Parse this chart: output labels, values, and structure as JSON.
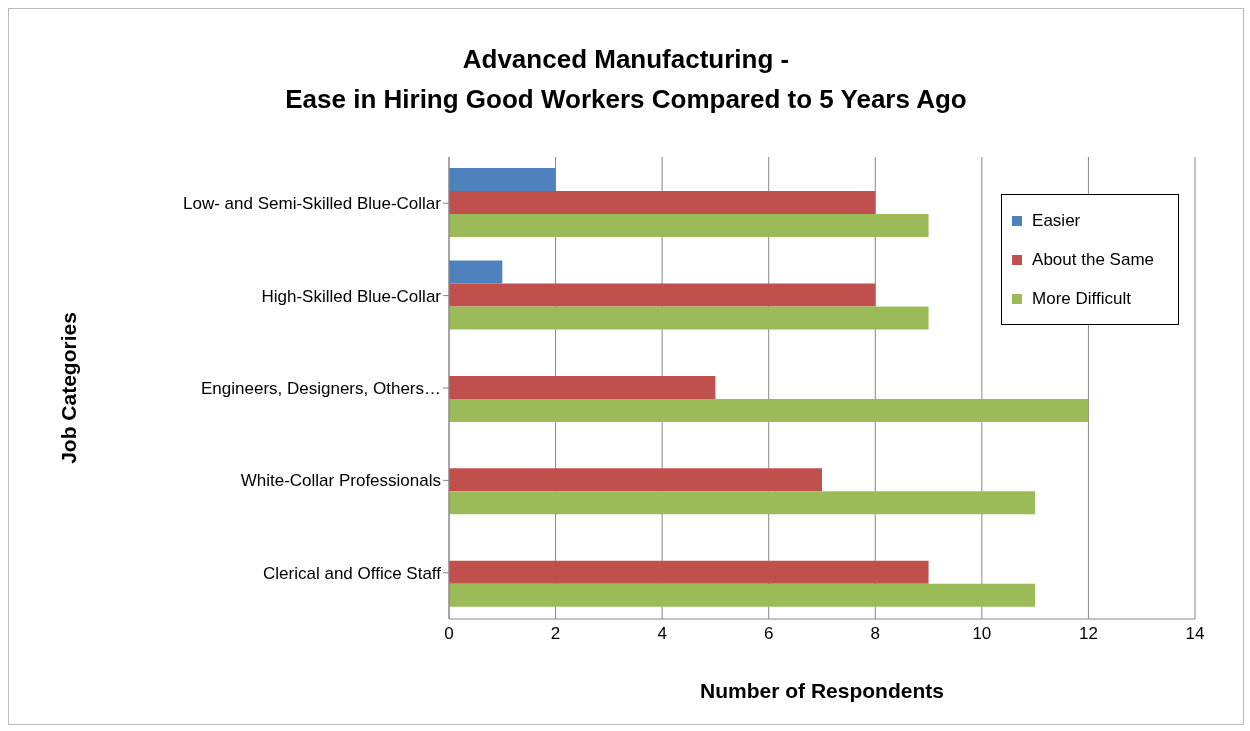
{
  "chart_data": {
    "type": "bar",
    "orientation": "horizontal",
    "title": "Advanced Manufacturing -\nEase in Hiring Good Workers Compared to 5 Years Ago",
    "xlabel": "Number of Respondents",
    "ylabel": "Job Categories",
    "categories": [
      "Low- and Semi-Skilled Blue-Collar",
      "High-Skilled Blue-Collar",
      "Engineers, Designers, Others…",
      "White-Collar Professionals",
      "Clerical and Office Staff"
    ],
    "series": [
      {
        "name": "Easier",
        "color": "#4f81bd",
        "values": [
          2,
          1,
          0,
          0,
          0
        ]
      },
      {
        "name": "About the Same",
        "color": "#c0504d",
        "values": [
          8,
          8,
          5,
          7,
          9
        ]
      },
      {
        "name": "More Difficult",
        "color": "#9bbb59",
        "values": [
          9,
          9,
          12,
          11,
          11
        ]
      }
    ],
    "xlim": [
      0,
      14
    ],
    "xticks": [
      0,
      2,
      4,
      6,
      8,
      10,
      12,
      14
    ],
    "grid": "x",
    "legend": "right"
  }
}
